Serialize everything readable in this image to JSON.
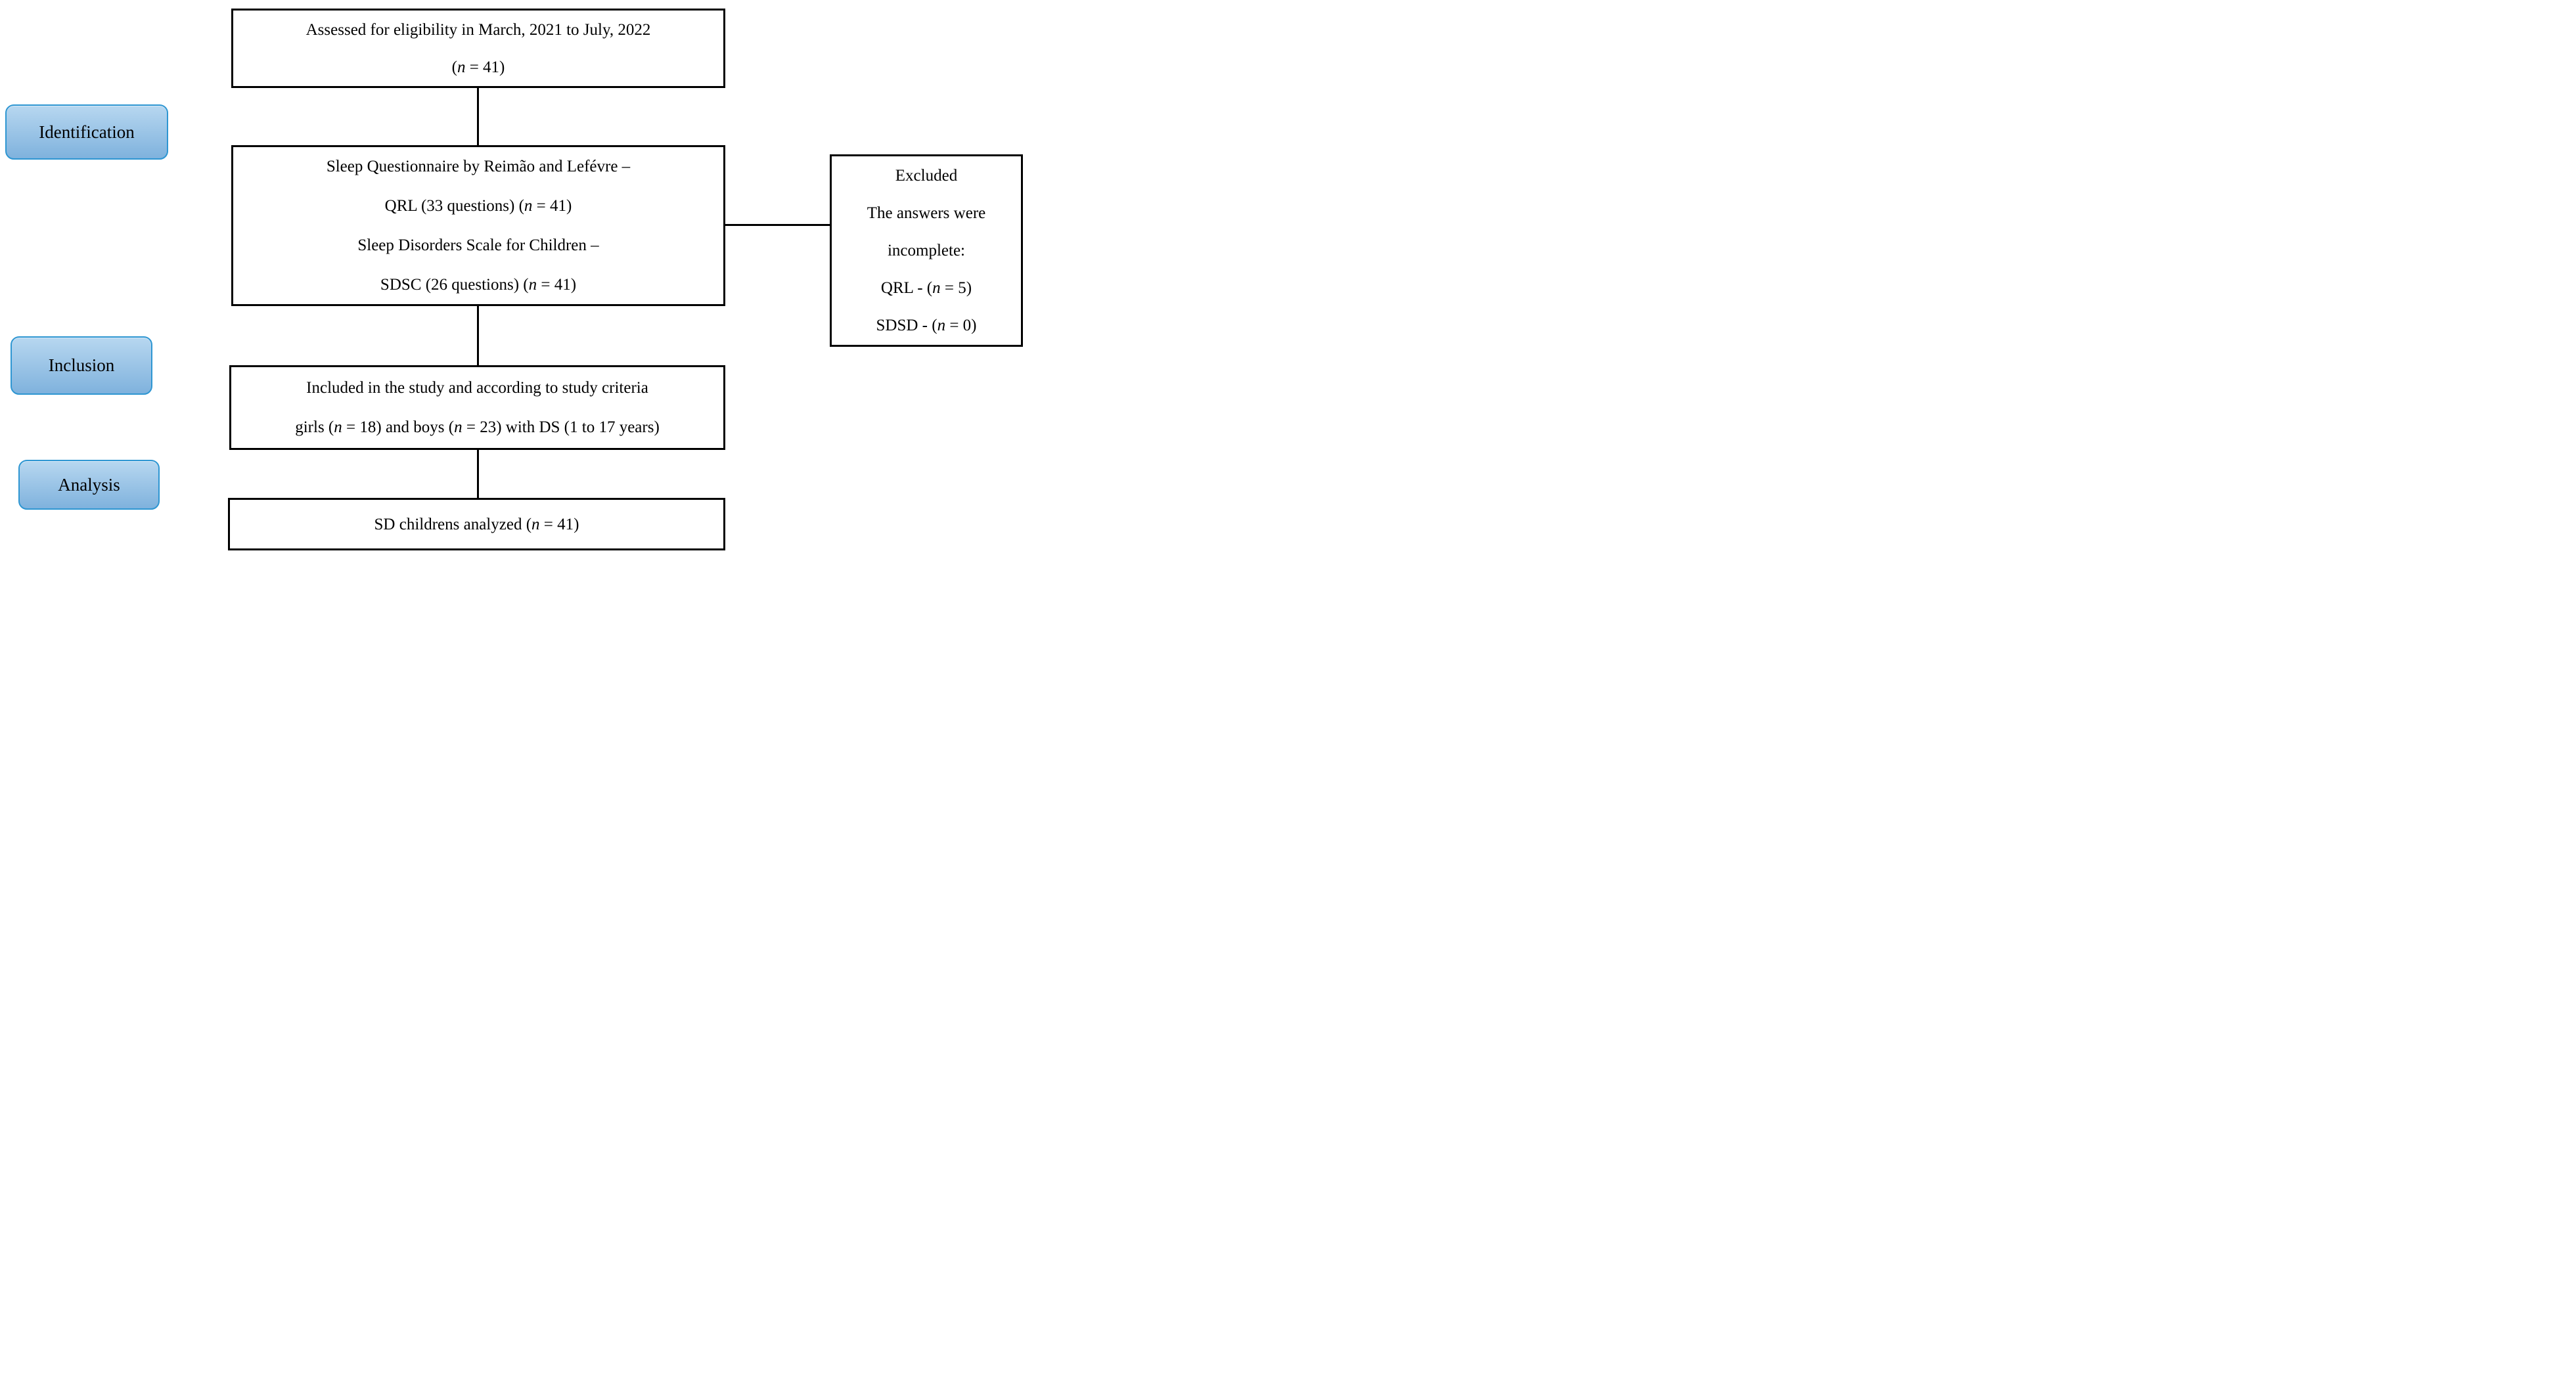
{
  "diagram_title": "Study flow diagram",
  "colors": {
    "background": "#ffffff",
    "box_border": "#000000",
    "connector": "#000000",
    "stage_fill_top": "#b7d7f0",
    "stage_fill_bottom": "#7fb2dd",
    "stage_border": "#2e96d2",
    "text": "#000000"
  },
  "stages": [
    {
      "label": "Identification"
    },
    {
      "label": "Inclusion"
    },
    {
      "label": "Analysis"
    }
  ],
  "flow_boxes": {
    "assessed": {
      "lines": [
        "Assessed for eligibility in March, 2021 to July, 2022",
        "(n = 41)"
      ]
    },
    "questionnaires": {
      "lines": [
        "Sleep Questionnaire by Reimão and Lefévre –",
        "QRL (33 questions) (n = 41)",
        "Sleep Disorders Scale for Children –",
        "SDSC (26 questions) (n = 41)"
      ]
    },
    "excluded": {
      "lines": [
        "Excluded",
        "The answers were",
        "incomplete:",
        "QRL - (n = 5)",
        "SDSD - (n = 0)"
      ]
    },
    "included": {
      "lines": [
        "Included in the study and according to study criteria",
        "girls (n = 18) and boys (n = 23) with DS (1 to 17 years)"
      ]
    },
    "analyzed": {
      "lines": [
        "SD childrens analyzed (n = 41)"
      ]
    }
  }
}
